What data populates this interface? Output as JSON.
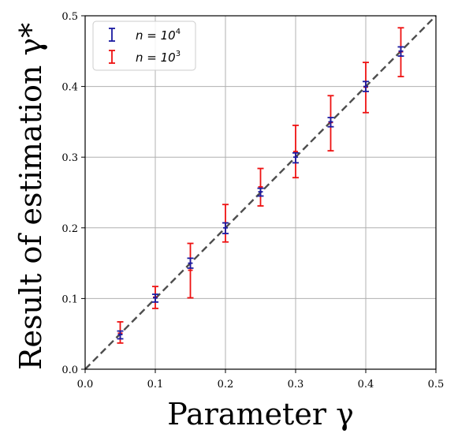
{
  "chart_data": {
    "type": "scatter",
    "xlabel": "Parameter γ",
    "ylabel": "Result of estimation γ*",
    "xlim": [
      0.0,
      0.5
    ],
    "ylim": [
      0.0,
      0.5
    ],
    "xticks": [
      "0.0",
      "0.1",
      "0.2",
      "0.3",
      "0.4",
      "0.5"
    ],
    "yticks": [
      "0.0",
      "0.1",
      "0.2",
      "0.3",
      "0.4",
      "0.5"
    ],
    "grid": true,
    "legend_position": "top-left",
    "reference_line": {
      "style": "dashed",
      "from": [
        0.0,
        0.0
      ],
      "to": [
        0.5,
        0.5
      ],
      "color": "#4d4d4d"
    },
    "series": [
      {
        "name": "n = 10^4",
        "legend_label": "n = 10",
        "legend_exp": "4",
        "color": "#1a1aa0",
        "x": [
          0.05,
          0.1,
          0.15,
          0.2,
          0.25,
          0.3,
          0.35,
          0.4,
          0.45
        ],
        "y": [
          0.049,
          0.101,
          0.15,
          0.2,
          0.251,
          0.3,
          0.35,
          0.4,
          0.45
        ],
        "err_low": [
          0.043,
          0.095,
          0.143,
          0.192,
          0.245,
          0.292,
          0.343,
          0.393,
          0.443
        ],
        "err_high": [
          0.054,
          0.106,
          0.157,
          0.207,
          0.256,
          0.306,
          0.356,
          0.407,
          0.456
        ]
      },
      {
        "name": "n = 10^3",
        "legend_label": "n = 10",
        "legend_exp": "3",
        "color": "#ee1111",
        "x": [
          0.05,
          0.1,
          0.15,
          0.2,
          0.25,
          0.3,
          0.35,
          0.4,
          0.45
        ],
        "y": [
          0.051,
          0.102,
          0.14,
          0.207,
          0.258,
          0.308,
          0.349,
          0.399,
          0.449
        ],
        "err_low": [
          0.037,
          0.086,
          0.101,
          0.18,
          0.231,
          0.271,
          0.309,
          0.363,
          0.414
        ],
        "err_high": [
          0.067,
          0.117,
          0.178,
          0.233,
          0.284,
          0.345,
          0.387,
          0.434,
          0.483
        ]
      }
    ]
  }
}
